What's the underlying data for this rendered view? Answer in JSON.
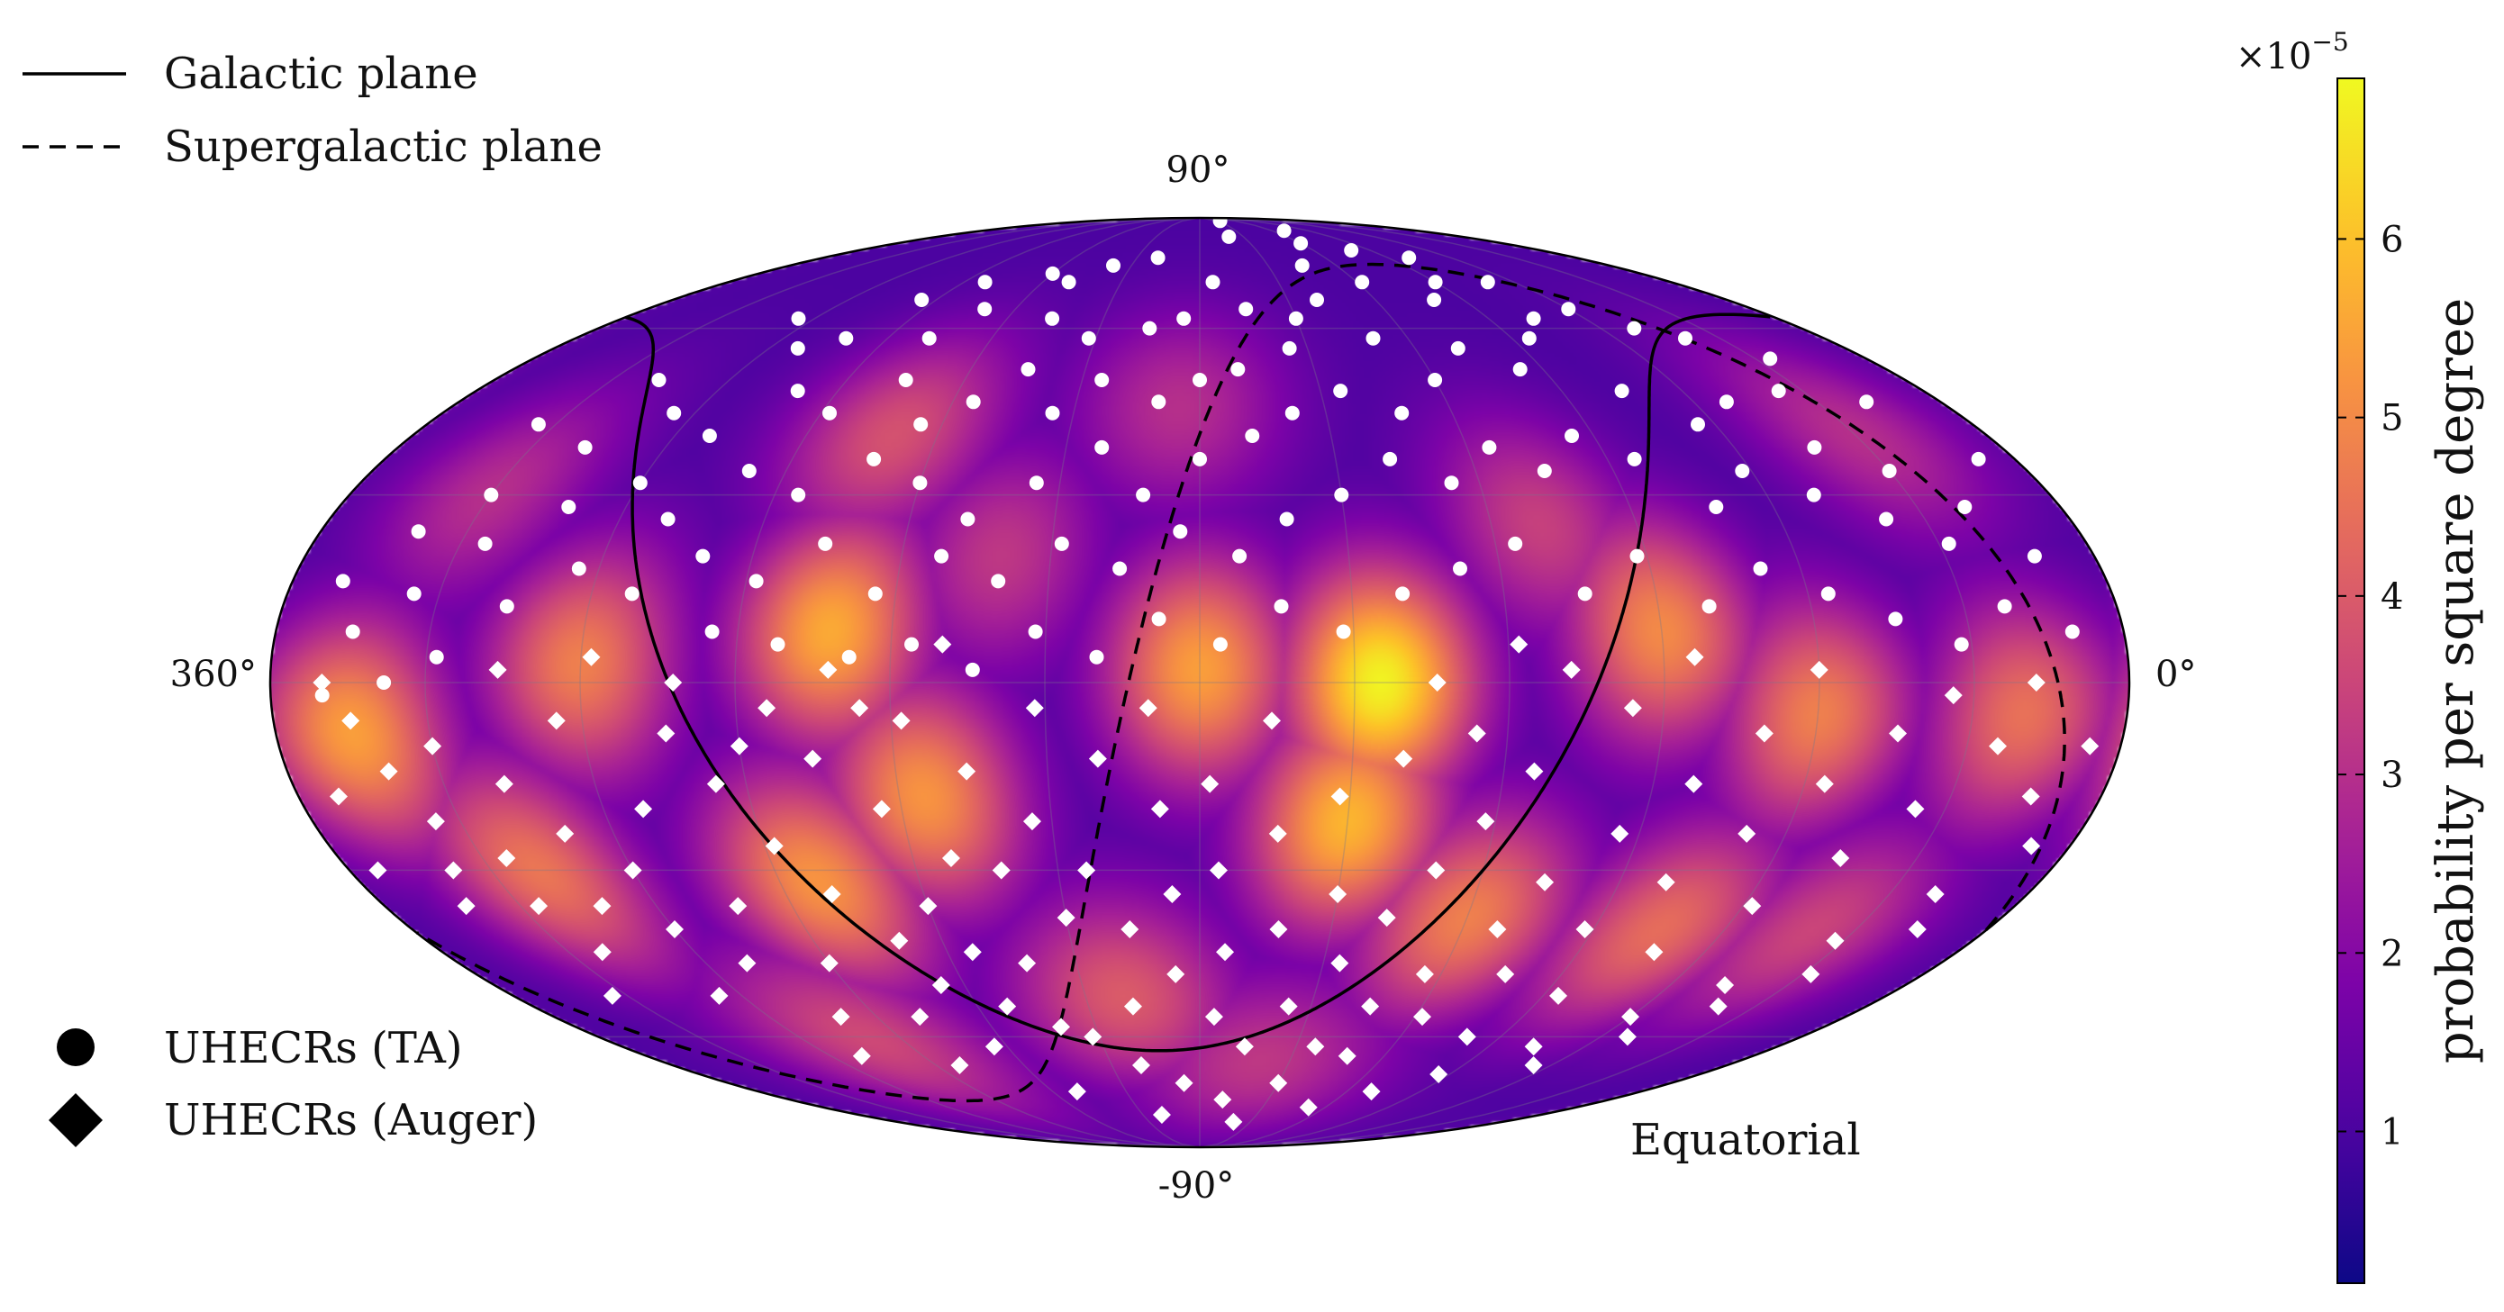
{
  "chart_data": {
    "type": "heatmap",
    "projection": "Mollweide",
    "coordinate_system": "Equatorial",
    "axis_labels": {
      "top": "90°",
      "bottom": "-90°",
      "left": "360°",
      "right": "0°"
    },
    "ra_range": [
      360,
      0
    ],
    "dec_range": [
      -90,
      90
    ],
    "grid": true,
    "legend": {
      "placement_lines": "top-left",
      "placement_markers": "bottom-left",
      "lines": [
        {
          "label": "Galactic plane",
          "style": "solid"
        },
        {
          "label": "Supergalactic plane",
          "style": "dashed"
        }
      ],
      "markers": [
        {
          "label": "UHECRs (TA)",
          "marker": "circle"
        },
        {
          "label": "UHECRs (Auger)",
          "marker": "diamond"
        }
      ]
    },
    "colorbar": {
      "label": "probability per square degree",
      "multiplier": "×10",
      "exponent": "−5",
      "colormap": "plasma",
      "range": [
        0.15,
        6.9
      ],
      "ticks": [
        1,
        2,
        3,
        4,
        5,
        6
      ],
      "tick_labels": [
        "1",
        "2",
        "3",
        "4",
        "5",
        "6"
      ]
    },
    "density_hotspots": [
      {
        "ra": 145,
        "dec": 0,
        "value": 6.8
      },
      {
        "ra": 150,
        "dec": -22,
        "value": 5.8
      },
      {
        "ra": 180,
        "dec": 2,
        "value": 5.4
      },
      {
        "ra": 235,
        "dec": -18,
        "value": 5.2
      },
      {
        "ra": 252,
        "dec": 8,
        "value": 5.6
      },
      {
        "ra": 262,
        "dec": -32,
        "value": 5.2
      },
      {
        "ra": 300,
        "dec": 3,
        "value": 4.8
      },
      {
        "ra": 320,
        "dec": -30,
        "value": 4.6
      },
      {
        "ra": 345,
        "dec": -8,
        "value": 5.4
      },
      {
        "ra": 90,
        "dec": 8,
        "value": 5.0
      },
      {
        "ra": 60,
        "dec": -5,
        "value": 4.8
      },
      {
        "ra": 20,
        "dec": -5,
        "value": 4.5
      },
      {
        "ra": 120,
        "dec": -38,
        "value": 4.8
      },
      {
        "ra": 75,
        "dec": -40,
        "value": 4.4
      },
      {
        "ra": 200,
        "dec": -52,
        "value": 4.0
      },
      {
        "ra": 250,
        "dec": 40,
        "value": 3.8
      },
      {
        "ra": 185,
        "dec": 45,
        "value": 3.0
      },
      {
        "ra": 220,
        "dec": 20,
        "value": 3.2
      },
      {
        "ra": 280,
        "dec": -60,
        "value": 3.6
      },
      {
        "ra": 30,
        "dec": 40,
        "value": 3.0
      },
      {
        "ra": 160,
        "dec": -65,
        "value": 3.2
      },
      {
        "ra": 330,
        "dec": 30,
        "value": 3.0
      },
      {
        "ra": 110,
        "dec": 25,
        "value": 3.4
      },
      {
        "ra": 40,
        "dec": -40,
        "value": 3.5
      }
    ],
    "density_background": 1.0,
    "ta_events": [
      {
        "ra": 160,
        "dec": 82
      },
      {
        "ra": 145,
        "dec": 88
      },
      {
        "ra": 200,
        "dec": 76
      },
      {
        "ra": 218,
        "dec": 74
      },
      {
        "ra": 230,
        "dec": 70
      },
      {
        "ra": 240,
        "dec": 72
      },
      {
        "ra": 250,
        "dec": 64
      },
      {
        "ra": 262,
        "dec": 70
      },
      {
        "ra": 275,
        "dec": 66
      },
      {
        "ra": 305,
        "dec": 62
      },
      {
        "ra": 120,
        "dec": 80
      },
      {
        "ra": 110,
        "dec": 84
      },
      {
        "ra": 100,
        "dec": 78
      },
      {
        "ra": 80,
        "dec": 76
      },
      {
        "ra": 70,
        "dec": 70
      },
      {
        "ra": 60,
        "dec": 64
      },
      {
        "ra": 50,
        "dec": 60
      },
      {
        "ra": 40,
        "dec": 58
      },
      {
        "ra": 175,
        "dec": 70
      },
      {
        "ra": 185,
        "dec": 62
      },
      {
        "ra": 195,
        "dec": 60
      },
      {
        "ra": 165,
        "dec": 64
      },
      {
        "ra": 150,
        "dec": 62
      },
      {
        "ra": 140,
        "dec": 66
      },
      {
        "ra": 130,
        "dec": 58
      },
      {
        "ra": 155,
        "dec": 56
      },
      {
        "ra": 170,
        "dec": 52
      },
      {
        "ra": 180,
        "dec": 50
      },
      {
        "ra": 190,
        "dec": 46
      },
      {
        "ra": 205,
        "dec": 50
      },
      {
        "ra": 215,
        "dec": 44
      },
      {
        "ra": 225,
        "dec": 52
      },
      {
        "ra": 235,
        "dec": 46
      },
      {
        "ra": 245,
        "dec": 42
      },
      {
        "ra": 255,
        "dec": 50
      },
      {
        "ra": 268,
        "dec": 44
      },
      {
        "ra": 280,
        "dec": 48
      },
      {
        "ra": 292,
        "dec": 40
      },
      {
        "ra": 305,
        "dec": 44
      },
      {
        "ra": 318,
        "dec": 38
      },
      {
        "ra": 330,
        "dec": 30
      },
      {
        "ra": 340,
        "dec": 24
      },
      {
        "ra": 350,
        "dec": 16
      },
      {
        "ra": 345,
        "dec": 8
      },
      {
        "ra": 335,
        "dec": 14
      },
      {
        "ra": 325,
        "dec": 22
      },
      {
        "ra": 312,
        "dec": 28
      },
      {
        "ra": 300,
        "dec": 32
      },
      {
        "ra": 290,
        "dec": 26
      },
      {
        "ra": 278,
        "dec": 34
      },
      {
        "ra": 265,
        "dec": 30
      },
      {
        "ra": 252,
        "dec": 36
      },
      {
        "ra": 240,
        "dec": 32
      },
      {
        "ra": 228,
        "dec": 26
      },
      {
        "ra": 215,
        "dec": 32
      },
      {
        "ra": 202,
        "dec": 38
      },
      {
        "ra": 192,
        "dec": 30
      },
      {
        "ra": 180,
        "dec": 36
      },
      {
        "ra": 168,
        "dec": 40
      },
      {
        "ra": 158,
        "dec": 44
      },
      {
        "ra": 145,
        "dec": 48
      },
      {
        "ra": 132,
        "dec": 44
      },
      {
        "ra": 120,
        "dec": 50
      },
      {
        "ra": 108,
        "dec": 56
      },
      {
        "ra": 96,
        "dec": 52
      },
      {
        "ra": 85,
        "dec": 58
      },
      {
        "ra": 75,
        "dec": 48
      },
      {
        "ra": 64,
        "dec": 42
      },
      {
        "ra": 52,
        "dec": 46
      },
      {
        "ra": 42,
        "dec": 38
      },
      {
        "ra": 30,
        "dec": 34
      },
      {
        "ra": 20,
        "dec": 28
      },
      {
        "ra": 12,
        "dec": 20
      },
      {
        "ra": 28,
        "dec": 22
      },
      {
        "ra": 38,
        "dec": 26
      },
      {
        "ra": 50,
        "dec": 30
      },
      {
        "ra": 62,
        "dec": 34
      },
      {
        "ra": 72,
        "dec": 28
      },
      {
        "ra": 84,
        "dec": 36
      },
      {
        "ra": 95,
        "dec": 40
      },
      {
        "ra": 105,
        "dec": 34
      },
      {
        "ra": 115,
        "dec": 38
      },
      {
        "ra": 126,
        "dec": 32
      },
      {
        "ra": 138,
        "dec": 36
      },
      {
        "ra": 150,
        "dec": 30
      },
      {
        "ra": 162,
        "dec": 26
      },
      {
        "ra": 172,
        "dec": 20
      },
      {
        "ra": 184,
        "dec": 24
      },
      {
        "ra": 196,
        "dec": 18
      },
      {
        "ra": 208,
        "dec": 22
      },
      {
        "ra": 220,
        "dec": 16
      },
      {
        "ra": 232,
        "dec": 20
      },
      {
        "ra": 244,
        "dec": 14
      },
      {
        "ra": 256,
        "dec": 22
      },
      {
        "ra": 268,
        "dec": 16
      },
      {
        "ra": 280,
        "dec": 20
      },
      {
        "ra": 292,
        "dec": 14
      },
      {
        "ra": 304,
        "dec": 18
      },
      {
        "ra": 316,
        "dec": 12
      },
      {
        "ra": 328,
        "dec": 4
      },
      {
        "ra": 338,
        "dec": 0
      },
      {
        "ra": 350,
        "dec": -2
      },
      {
        "ra": 275,
        "dec": 8
      },
      {
        "ra": 262,
        "dec": 6
      },
      {
        "ra": 248,
        "dec": 4
      },
      {
        "ra": 236,
        "dec": 6
      },
      {
        "ra": 224,
        "dec": 2
      },
      {
        "ra": 212,
        "dec": 8
      },
      {
        "ra": 200,
        "dec": 4
      },
      {
        "ra": 188,
        "dec": 10
      },
      {
        "ra": 176,
        "dec": 6
      },
      {
        "ra": 164,
        "dec": 12
      },
      {
        "ra": 152,
        "dec": 8
      },
      {
        "ra": 140,
        "dec": 14
      },
      {
        "ra": 128,
        "dec": 18
      },
      {
        "ra": 116,
        "dec": 22
      },
      {
        "ra": 104,
        "dec": 14
      },
      {
        "ra": 92,
        "dec": 20
      },
      {
        "ra": 80,
        "dec": 12
      },
      {
        "ra": 68,
        "dec": 18
      },
      {
        "ra": 56,
        "dec": 14
      },
      {
        "ra": 44,
        "dec": 10
      },
      {
        "ra": 32,
        "dec": 6
      },
      {
        "ra": 22,
        "dec": 12
      },
      {
        "ra": 10,
        "dec": 8
      },
      {
        "ra": 100,
        "dec": 66
      },
      {
        "ra": 118,
        "dec": 70
      },
      {
        "ra": 135,
        "dec": 74
      },
      {
        "ra": 292,
        "dec": 56
      },
      {
        "ra": 318,
        "dec": 50
      },
      {
        "ra": 334,
        "dec": 42
      },
      {
        "ra": 8,
        "dec": 36
      },
      {
        "ra": 18,
        "dec": 46
      },
      {
        "ra": 282,
        "dec": 58
      },
      {
        "ra": 258,
        "dec": 58
      },
      {
        "ra": 212,
        "dec": 58
      },
      {
        "ra": 226,
        "dec": 62
      },
      {
        "ra": 90,
        "dec": 70
      },
      {
        "ra": 76,
        "dec": 62
      },
      {
        "ra": 26,
        "dec": 54
      },
      {
        "ra": 36,
        "dec": 48
      }
    ],
    "auger_events": [
      {
        "ra": 350,
        "dec": 0
      },
      {
        "ra": 345,
        "dec": -6
      },
      {
        "ra": 340,
        "dec": -14
      },
      {
        "ra": 352,
        "dec": -18
      },
      {
        "ra": 335,
        "dec": -22
      },
      {
        "ra": 325,
        "dec": -28
      },
      {
        "ra": 330,
        "dec": -10
      },
      {
        "ra": 318,
        "dec": -16
      },
      {
        "ra": 310,
        "dec": -24
      },
      {
        "ra": 300,
        "dec": -30
      },
      {
        "ra": 292,
        "dec": -20
      },
      {
        "ra": 305,
        "dec": -6
      },
      {
        "ra": 298,
        "dec": 4
      },
      {
        "ra": 284,
        "dec": -8
      },
      {
        "ra": 276,
        "dec": -16
      },
      {
        "ra": 268,
        "dec": -26
      },
      {
        "ra": 260,
        "dec": -34
      },
      {
        "ra": 250,
        "dec": -42
      },
      {
        "ra": 240,
        "dec": -36
      },
      {
        "ra": 232,
        "dec": -28
      },
      {
        "ra": 244,
        "dec": -20
      },
      {
        "ra": 256,
        "dec": -12
      },
      {
        "ra": 264,
        "dec": -4
      },
      {
        "ra": 252,
        "dec": 2
      },
      {
        "ra": 238,
        "dec": -6
      },
      {
        "ra": 226,
        "dec": -14
      },
      {
        "ra": 214,
        "dec": -22
      },
      {
        "ra": 204,
        "dec": -30
      },
      {
        "ra": 196,
        "dec": -40
      },
      {
        "ra": 186,
        "dec": -48
      },
      {
        "ra": 176,
        "dec": -56
      },
      {
        "ra": 166,
        "dec": -62
      },
      {
        "ra": 156,
        "dec": -54
      },
      {
        "ra": 146,
        "dec": -46
      },
      {
        "ra": 138,
        "dec": -38
      },
      {
        "ra": 130,
        "dec": -30
      },
      {
        "ra": 122,
        "dec": -22
      },
      {
        "ra": 114,
        "dec": -14
      },
      {
        "ra": 126,
        "dec": -8
      },
      {
        "ra": 140,
        "dec": -12
      },
      {
        "ra": 152,
        "dec": -18
      },
      {
        "ra": 164,
        "dec": -24
      },
      {
        "ra": 176,
        "dec": -30
      },
      {
        "ra": 188,
        "dec": -20
      },
      {
        "ra": 200,
        "dec": -12
      },
      {
        "ra": 212,
        "dec": -4
      },
      {
        "ra": 222,
        "dec": -46
      },
      {
        "ra": 232,
        "dec": -54
      },
      {
        "ra": 244,
        "dec": -62
      },
      {
        "ra": 212,
        "dec": -60
      },
      {
        "ra": 200,
        "dec": -66
      },
      {
        "ra": 186,
        "dec": -70
      },
      {
        "ra": 170,
        "dec": -74
      },
      {
        "ra": 150,
        "dec": -70
      },
      {
        "ra": 132,
        "dec": -64
      },
      {
        "ra": 118,
        "dec": -56
      },
      {
        "ra": 104,
        "dec": -48
      },
      {
        "ra": 92,
        "dec": -40
      },
      {
        "ra": 80,
        "dec": -32
      },
      {
        "ra": 68,
        "dec": -24
      },
      {
        "ra": 56,
        "dec": -16
      },
      {
        "ra": 44,
        "dec": -8
      },
      {
        "ra": 34,
        "dec": -2
      },
      {
        "ra": 24,
        "dec": -10
      },
      {
        "ra": 14,
        "dec": -18
      },
      {
        "ra": 8,
        "dec": -26
      },
      {
        "ra": 20,
        "dec": -34
      },
      {
        "ra": 32,
        "dec": -42
      },
      {
        "ra": 46,
        "dec": -50
      },
      {
        "ra": 60,
        "dec": -56
      },
      {
        "ra": 76,
        "dec": -62
      },
      {
        "ra": 94,
        "dec": -68
      },
      {
        "ra": 110,
        "dec": -72
      },
      {
        "ra": 128,
        "dec": -76
      },
      {
        "ra": 160,
        "dec": -80
      },
      {
        "ra": 200,
        "dec": -78
      },
      {
        "ra": 230,
        "dec": -72
      },
      {
        "ra": 262,
        "dec": -66
      },
      {
        "ra": 280,
        "dec": -56
      },
      {
        "ra": 290,
        "dec": -46
      },
      {
        "ra": 300,
        "dec": -40
      },
      {
        "ra": 312,
        "dec": -36
      },
      {
        "ra": 322,
        "dec": -44
      },
      {
        "ra": 334,
        "dec": -52
      },
      {
        "ra": 342,
        "dec": -36
      },
      {
        "ra": 354,
        "dec": -30
      },
      {
        "ra": 70,
        "dec": -8
      },
      {
        "ra": 82,
        "dec": -16
      },
      {
        "ra": 94,
        "dec": -24
      },
      {
        "ra": 106,
        "dec": -32
      },
      {
        "ra": 96,
        "dec": -4
      },
      {
        "ra": 108,
        "dec": 2
      },
      {
        "ra": 84,
        "dec": 4
      },
      {
        "ra": 72,
        "dec": -44
      },
      {
        "ra": 58,
        "dec": -36
      },
      {
        "ra": 46,
        "dec": -28
      },
      {
        "ra": 36,
        "dec": -20
      },
      {
        "ra": 150,
        "dec": -34
      },
      {
        "ra": 162,
        "dec": -40
      },
      {
        "ra": 174,
        "dec": -44
      },
      {
        "ra": 186,
        "dec": -34
      },
      {
        "ra": 198,
        "dec": -54
      },
      {
        "ra": 210,
        "dec": -38
      },
      {
        "ra": 222,
        "dec": -30
      },
      {
        "ra": 234,
        "dec": -44
      },
      {
        "ra": 246,
        "dec": -50
      },
      {
        "ra": 258,
        "dec": -56
      },
      {
        "ra": 270,
        "dec": -46
      },
      {
        "ra": 282,
        "dec": -36
      },
      {
        "ra": 270,
        "dec": -10
      },
      {
        "ra": 282,
        "dec": 0
      },
      {
        "ra": 316,
        "dec": 2
      },
      {
        "ra": 326,
        "dec": -36
      },
      {
        "ra": 338,
        "dec": -30
      },
      {
        "ra": 124,
        "dec": -48
      },
      {
        "ra": 112,
        "dec": -40
      },
      {
        "ra": 134,
        "dec": -54
      },
      {
        "ra": 144,
        "dec": -62
      },
      {
        "ra": 100,
        "dec": -60
      },
      {
        "ra": 86,
        "dec": -52
      },
      {
        "ra": 66,
        "dec": -66
      },
      {
        "ra": 52,
        "dec": -60
      },
      {
        "ra": 40,
        "dec": -54
      },
      {
        "ra": 28,
        "dec": -48
      },
      {
        "ra": 16,
        "dec": -40
      },
      {
        "ra": 6,
        "dec": -10
      },
      {
        "ra": 18,
        "dec": 0
      },
      {
        "ra": 60,
        "dec": 2
      },
      {
        "ra": 230,
        "dec": 6
      },
      {
        "ra": 290,
        "dec": -64
      },
      {
        "ra": 306,
        "dec": -52
      },
      {
        "ra": 178,
        "dec": -16
      },
      {
        "ra": 166,
        "dec": -6
      },
      {
        "ra": 190,
        "dec": -4
      },
      {
        "ra": 118,
        "dec": 6
      },
      {
        "ra": 134,
        "dec": 0
      },
      {
        "ra": 246,
        "dec": -4
      },
      {
        "ra": 220,
        "dec": -58
      }
    ]
  },
  "chart_labels": {
    "legend_galactic": "Galactic plane",
    "legend_supergalactic": "Supergalactic plane",
    "legend_ta": "UHECRs (TA)",
    "legend_auger": "UHECRs (Auger)",
    "coord_system": "Equatorial",
    "lat_top": "90°",
    "lat_bottom": "-90°",
    "lon_left": "360°",
    "lon_right": "0°"
  }
}
